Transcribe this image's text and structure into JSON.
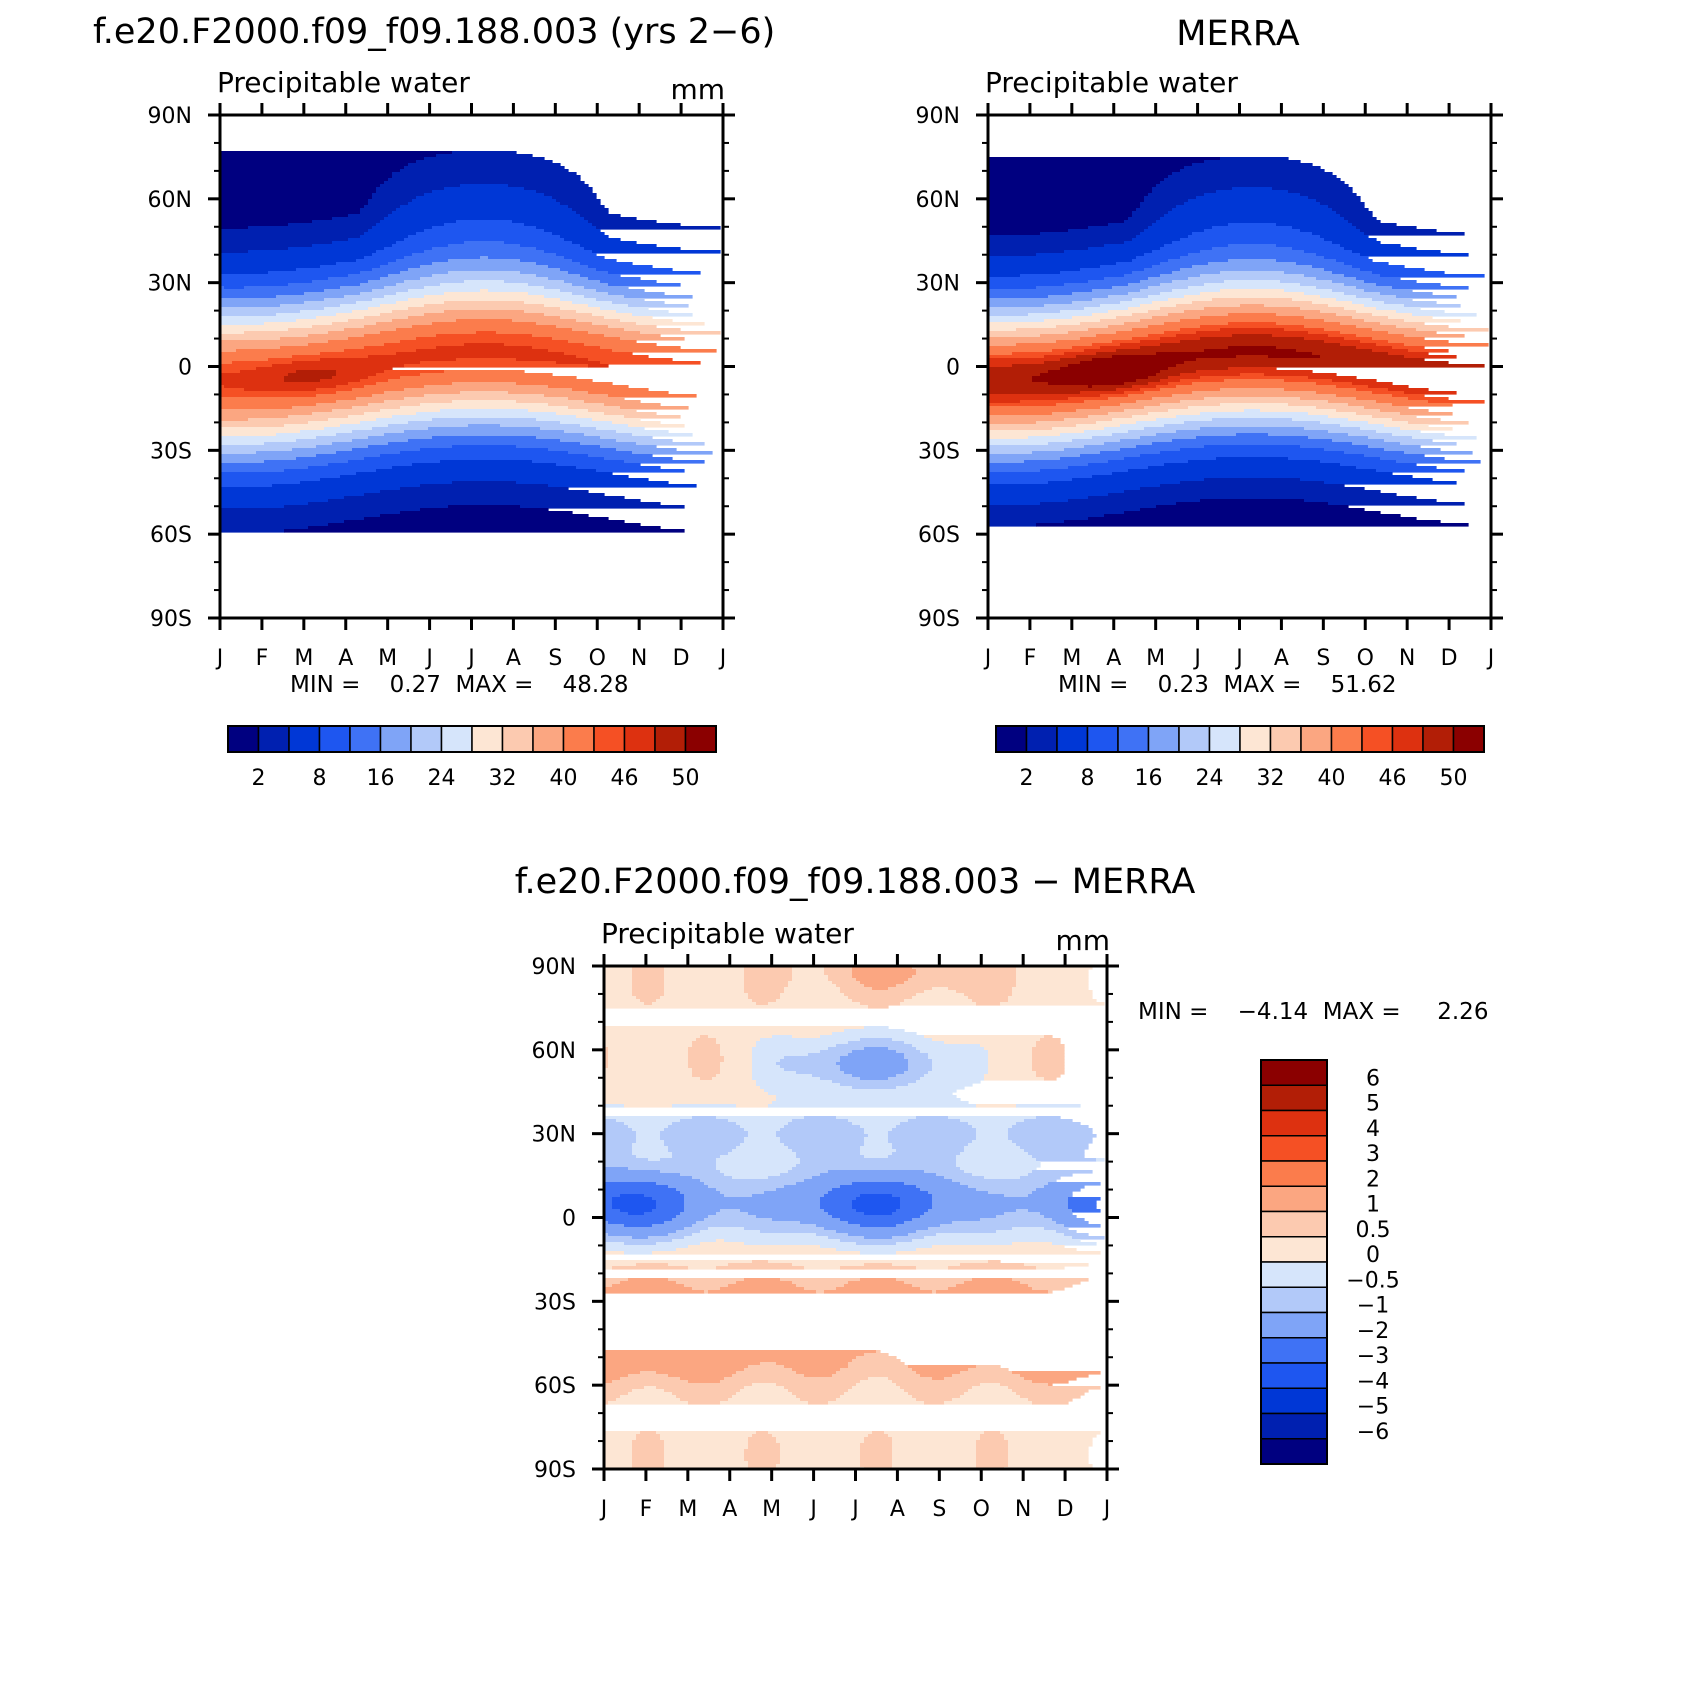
{
  "colors": {
    "abs_scale": [
      "#000080",
      "#0020b0",
      "#0037d6",
      "#1e56f0",
      "#3f72f5",
      "#7fa4f7",
      "#b2c9f9",
      "#d6e5fb",
      "#fde6d4",
      "#fccab0",
      "#fba681",
      "#fb7c4c",
      "#f55024",
      "#dd3110",
      "#b21e06",
      "#8b0000"
    ],
    "diff_scale": [
      "#000080",
      "#0020b0",
      "#0037d6",
      "#1e56f0",
      "#3f72f5",
      "#7fa4f7",
      "#b2c9f9",
      "#d6e5fb",
      "#fde6d4",
      "#fccab0",
      "#fba681",
      "#fb7c4c",
      "#f55024",
      "#dd3110",
      "#b21e06",
      "#8b0000"
    ]
  },
  "chart_data": [
    {
      "type": "heatmap",
      "title": "f.e20.F2000.f09_f09.188.003 (yrs 2−6)",
      "subtitle": "Precipitable water",
      "units": "mm",
      "x_tick_labels": [
        "J",
        "F",
        "M",
        "A",
        "M",
        "J",
        "J",
        "A",
        "S",
        "O",
        "N",
        "D",
        "J"
      ],
      "y_tick_labels": [
        "90N",
        "60N",
        "30N",
        "0",
        "30S",
        "60S",
        "90S"
      ],
      "y_values": [
        90,
        60,
        30,
        0,
        -30,
        -60,
        -90
      ],
      "x_values": [
        1,
        2,
        3,
        4,
        5,
        6,
        7,
        8,
        9,
        10,
        11,
        12
      ],
      "ylim": [
        -90,
        90
      ],
      "min_text": "MIN =    0.27  MAX =    48.28",
      "min": 0.27,
      "max": 48.28,
      "levels": [
        2,
        4,
        8,
        12,
        16,
        20,
        24,
        28,
        32,
        36,
        40,
        44,
        46,
        48,
        50
      ],
      "colorbar_labels": [
        "2",
        "8",
        "16",
        "24",
        "32",
        "40",
        "46",
        "50"
      ]
    },
    {
      "type": "heatmap",
      "title": "MERRA",
      "subtitle": "Precipitable water",
      "units": "",
      "x_tick_labels": [
        "J",
        "F",
        "M",
        "A",
        "M",
        "J",
        "J",
        "A",
        "S",
        "O",
        "N",
        "D",
        "J"
      ],
      "y_tick_labels": [
        "90N",
        "60N",
        "30N",
        "0",
        "30S",
        "60S",
        "90S"
      ],
      "y_values": [
        90,
        60,
        30,
        0,
        -30,
        -60,
        -90
      ],
      "x_values": [
        1,
        2,
        3,
        4,
        5,
        6,
        7,
        8,
        9,
        10,
        11,
        12
      ],
      "ylim": [
        -90,
        90
      ],
      "min_text": "MIN =    0.23  MAX =    51.62",
      "min": 0.23,
      "max": 51.62,
      "levels": [
        2,
        4,
        8,
        12,
        16,
        20,
        24,
        28,
        32,
        36,
        40,
        44,
        46,
        48,
        50
      ],
      "colorbar_labels": [
        "2",
        "8",
        "16",
        "24",
        "32",
        "40",
        "46",
        "50"
      ]
    },
    {
      "type": "heatmap",
      "title": "f.e20.F2000.f09_f09.188.003 − MERRA",
      "subtitle": "Precipitable water",
      "units": "mm",
      "x_tick_labels": [
        "J",
        "F",
        "M",
        "A",
        "M",
        "J",
        "J",
        "A",
        "S",
        "O",
        "N",
        "D",
        "J"
      ],
      "y_tick_labels": [
        "90N",
        "60N",
        "30N",
        "0",
        "30S",
        "60S",
        "90S"
      ],
      "y_values": [
        90,
        60,
        30,
        0,
        -30,
        -60,
        -90
      ],
      "x_values": [
        1,
        2,
        3,
        4,
        5,
        6,
        7,
        8,
        9,
        10,
        11,
        12
      ],
      "ylim": [
        -90,
        90
      ],
      "min_text": "MIN =    −4.14  MAX =     2.26",
      "min": -4.14,
      "max": 2.26,
      "levels": [
        -6,
        -5,
        -4,
        -3,
        -2,
        -1,
        -0.5,
        0,
        0.5,
        1,
        2,
        3,
        4,
        5,
        6
      ],
      "colorbar_labels": [
        "6",
        "5",
        "4",
        "3",
        "2",
        "1",
        "0.5",
        "0",
        "−0.5",
        "−1",
        "−2",
        "−3",
        "−4",
        "−5",
        "−6"
      ]
    }
  ]
}
